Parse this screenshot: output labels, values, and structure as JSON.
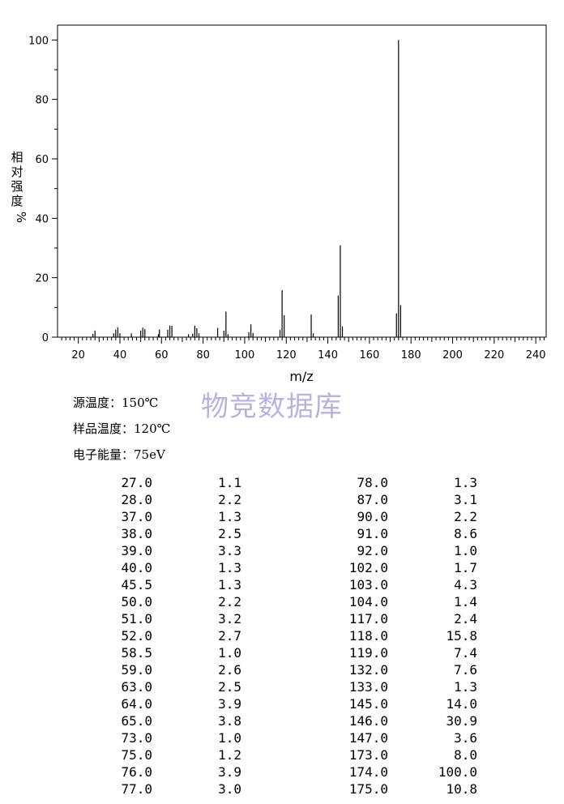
{
  "chart_data": {
    "type": "bar",
    "xlabel": "m/z",
    "ylabel_chars": [
      "相",
      "对",
      "强",
      "度",
      "%"
    ],
    "xlim": [
      10,
      245
    ],
    "ylim": [
      0,
      105
    ],
    "xticks": [
      20,
      40,
      60,
      80,
      100,
      120,
      140,
      160,
      180,
      200,
      220,
      240
    ],
    "yticks": [
      0,
      20,
      40,
      60,
      80,
      100
    ],
    "grid": false,
    "peaks": [
      {
        "mz": 27.0,
        "intensity": 1.1
      },
      {
        "mz": 28.0,
        "intensity": 2.2
      },
      {
        "mz": 37.0,
        "intensity": 1.3
      },
      {
        "mz": 38.0,
        "intensity": 2.5
      },
      {
        "mz": 39.0,
        "intensity": 3.3
      },
      {
        "mz": 40.0,
        "intensity": 1.3
      },
      {
        "mz": 45.5,
        "intensity": 1.3
      },
      {
        "mz": 50.0,
        "intensity": 2.2
      },
      {
        "mz": 51.0,
        "intensity": 3.2
      },
      {
        "mz": 52.0,
        "intensity": 2.7
      },
      {
        "mz": 58.5,
        "intensity": 1.0
      },
      {
        "mz": 59.0,
        "intensity": 2.6
      },
      {
        "mz": 63.0,
        "intensity": 2.5
      },
      {
        "mz": 64.0,
        "intensity": 3.9
      },
      {
        "mz": 65.0,
        "intensity": 3.8
      },
      {
        "mz": 73.0,
        "intensity": 1.0
      },
      {
        "mz": 75.0,
        "intensity": 1.2
      },
      {
        "mz": 76.0,
        "intensity": 3.9
      },
      {
        "mz": 77.0,
        "intensity": 3.0
      },
      {
        "mz": 78.0,
        "intensity": 1.3
      },
      {
        "mz": 87.0,
        "intensity": 3.1
      },
      {
        "mz": 90.0,
        "intensity": 2.2
      },
      {
        "mz": 91.0,
        "intensity": 8.6
      },
      {
        "mz": 92.0,
        "intensity": 1.0
      },
      {
        "mz": 102.0,
        "intensity": 1.7
      },
      {
        "mz": 103.0,
        "intensity": 4.3
      },
      {
        "mz": 104.0,
        "intensity": 1.4
      },
      {
        "mz": 117.0,
        "intensity": 2.4
      },
      {
        "mz": 118.0,
        "intensity": 15.8
      },
      {
        "mz": 119.0,
        "intensity": 7.4
      },
      {
        "mz": 132.0,
        "intensity": 7.6
      },
      {
        "mz": 133.0,
        "intensity": 1.3
      },
      {
        "mz": 145.0,
        "intensity": 14.0
      },
      {
        "mz": 146.0,
        "intensity": 30.9
      },
      {
        "mz": 147.0,
        "intensity": 3.6
      },
      {
        "mz": 173.0,
        "intensity": 8.0
      },
      {
        "mz": 174.0,
        "intensity": 100.0
      },
      {
        "mz": 175.0,
        "intensity": 10.8
      }
    ]
  },
  "watermark": "物竞数据库",
  "conditions": {
    "source_temp": "源温度：150℃",
    "sample_temp": "样品温度：120℃",
    "electron_energy": "电子能量：75eV"
  },
  "peak_table": [
    [
      "27.0",
      "1.1",
      "78.0",
      "1.3"
    ],
    [
      "28.0",
      "2.2",
      "87.0",
      "3.1"
    ],
    [
      "37.0",
      "1.3",
      "90.0",
      "2.2"
    ],
    [
      "38.0",
      "2.5",
      "91.0",
      "8.6"
    ],
    [
      "39.0",
      "3.3",
      "92.0",
      "1.0"
    ],
    [
      "40.0",
      "1.3",
      "102.0",
      "1.7"
    ],
    [
      "45.5",
      "1.3",
      "103.0",
      "4.3"
    ],
    [
      "50.0",
      "2.2",
      "104.0",
      "1.4"
    ],
    [
      "51.0",
      "3.2",
      "117.0",
      "2.4"
    ],
    [
      "52.0",
      "2.7",
      "118.0",
      "15.8"
    ],
    [
      "58.5",
      "1.0",
      "119.0",
      "7.4"
    ],
    [
      "59.0",
      "2.6",
      "132.0",
      "7.6"
    ],
    [
      "63.0",
      "2.5",
      "133.0",
      "1.3"
    ],
    [
      "64.0",
      "3.9",
      "145.0",
      "14.0"
    ],
    [
      "65.0",
      "3.8",
      "146.0",
      "30.9"
    ],
    [
      "73.0",
      "1.0",
      "147.0",
      "3.6"
    ],
    [
      "75.0",
      "1.2",
      "173.0",
      "8.0"
    ],
    [
      "76.0",
      "3.9",
      "174.0",
      "100.0"
    ],
    [
      "77.0",
      "3.0",
      "175.0",
      "10.8"
    ]
  ]
}
